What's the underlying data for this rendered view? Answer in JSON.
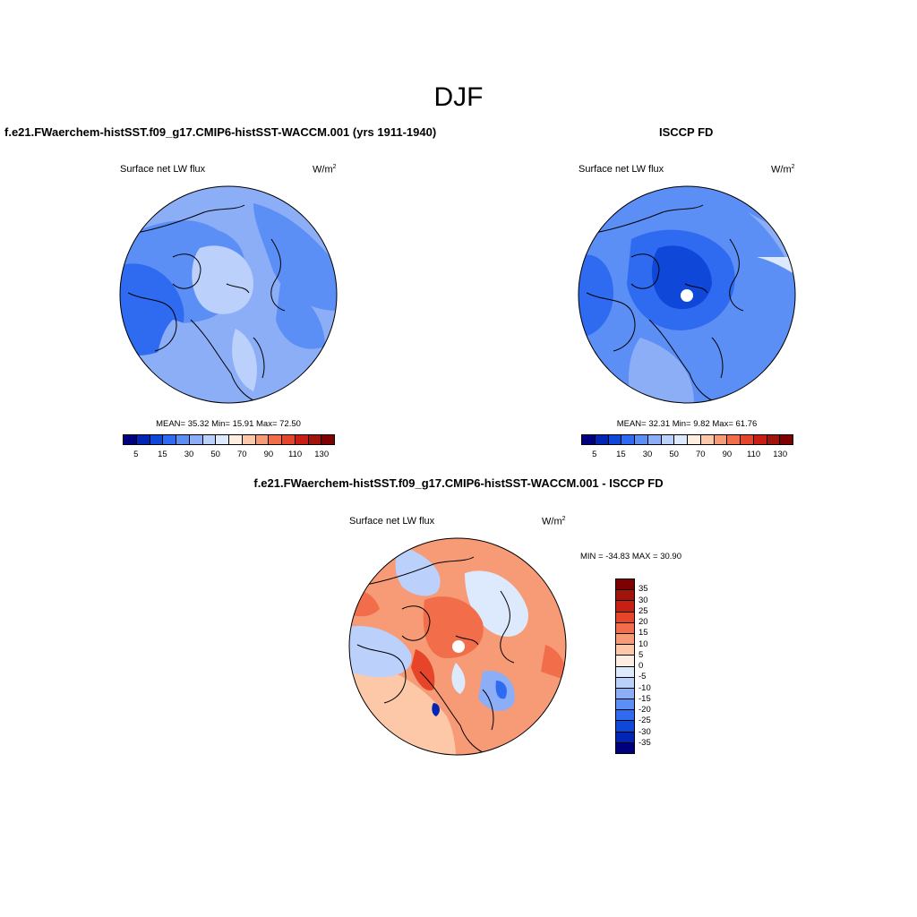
{
  "main_title": "DJF",
  "panels": [
    {
      "title": "f.e21.FWaerchem-histSST.f09_g17.CMIP6-histSST-WACCM.001 (yrs 1911-1940)",
      "variable": "Surface net LW flux",
      "units_base": "W/m",
      "units_exp": "2",
      "stats": "MEAN=  35.32  Min=  15.91  Max=  72.50",
      "colorbar_colors": [
        "#00007f",
        "#0026b3",
        "#0f47d9",
        "#2f6bf0",
        "#5c8ff5",
        "#8caef7",
        "#bbd0fb",
        "#dde9fd",
        "#fdeee1",
        "#fcc8a8",
        "#f79a76",
        "#f26e4b",
        "#e6452a",
        "#c81f14",
        "#a0140c",
        "#7f0000"
      ],
      "colorbar_ticks": [
        "5",
        "15",
        "30",
        "50",
        "70",
        "90",
        "110",
        "130"
      ]
    },
    {
      "title": "ISCCP FD",
      "variable": "Surface net LW flux",
      "units_base": "W/m",
      "units_exp": "2",
      "stats": "MEAN=  32.31  Min=   9.82  Max=  61.76",
      "colorbar_colors": [
        "#00007f",
        "#0026b3",
        "#0f47d9",
        "#2f6bf0",
        "#5c8ff5",
        "#8caef7",
        "#bbd0fb",
        "#dde9fd",
        "#fdeee1",
        "#fcc8a8",
        "#f79a76",
        "#f26e4b",
        "#e6452a",
        "#c81f14",
        "#a0140c",
        "#7f0000"
      ],
      "colorbar_ticks": [
        "5",
        "15",
        "30",
        "50",
        "70",
        "90",
        "110",
        "130"
      ]
    },
    {
      "title": "f.e21.FWaerchem-histSST.f09_g17.CMIP6-histSST-WACCM.001 - ISCCP FD",
      "variable": "Surface net LW flux",
      "units_base": "W/m",
      "units_exp": "2",
      "stats": "MIN = -34.83 MAX =  30.90",
      "colorbar_colors": [
        "#7f0000",
        "#a0140c",
        "#c81f14",
        "#e6452a",
        "#f26e4b",
        "#f79a76",
        "#fcc8a8",
        "#fdeee1",
        "#dde9fd",
        "#bbd0fb",
        "#8caef7",
        "#5c8ff5",
        "#2f6bf0",
        "#0f47d9",
        "#0026b3",
        "#00007f"
      ],
      "colorbar_ticks": [
        "35",
        "30",
        "25",
        "20",
        "15",
        "10",
        "5",
        "0",
        "-5",
        "-10",
        "-15",
        "-20",
        "-25",
        "-30",
        "-35"
      ]
    }
  ]
}
